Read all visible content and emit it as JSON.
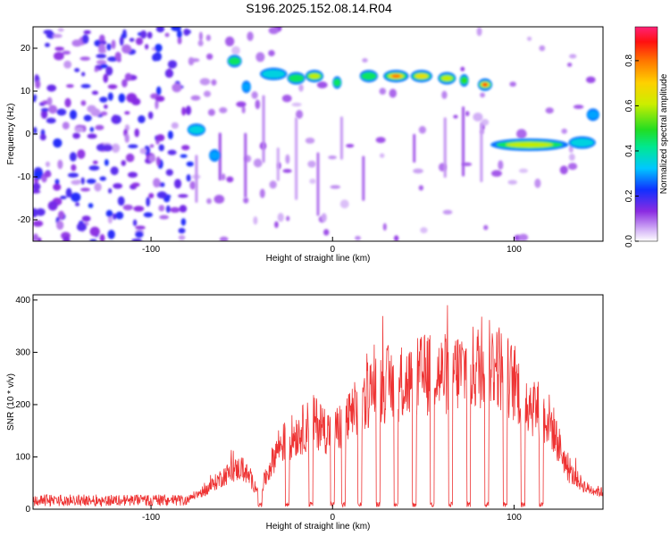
{
  "title": "S196.2025.152.08.14.R04",
  "chart_data": [
    {
      "type": "heatmap",
      "xlabel": "Height of straight line (km)",
      "ylabel": "Frequency (Hz)",
      "xlim": [
        -165,
        149
      ],
      "ylim": [
        -25,
        25
      ],
      "x_ticks": [
        -100,
        0,
        100
      ],
      "x_tick_labels": [
        "-100",
        "0",
        "100"
      ],
      "y_ticks": [
        -20,
        -10,
        0,
        10,
        20
      ],
      "y_tick_labels": [
        "-20",
        "-10",
        "0",
        "10",
        "20"
      ],
      "colorbar": {
        "label": "Normalized spectral amplitude",
        "range": [
          0,
          0.95
        ],
        "ticks": [
          0,
          0.2,
          0.4,
          0.6,
          0.8
        ],
        "tick_labels": [
          "0.0",
          "0.2",
          "0.4",
          "0.6",
          "0.8"
        ]
      },
      "ridges": [
        {
          "x_start": -80,
          "x_end": -70,
          "freq": 1,
          "amp": 0.35
        },
        {
          "x_start": -68,
          "x_end": -62,
          "freq": -5,
          "amp": 0.3
        },
        {
          "x_start": -58,
          "x_end": -50,
          "freq": 17,
          "amp": 0.45
        },
        {
          "x_start": -50,
          "x_end": -45,
          "freq": 11,
          "amp": 0.3
        },
        {
          "x_start": -40,
          "x_end": -25,
          "freq": 14,
          "amp": 0.35
        },
        {
          "x_start": -25,
          "x_end": -15,
          "freq": 13,
          "amp": 0.45
        },
        {
          "x_start": -15,
          "x_end": -5,
          "freq": 13.5,
          "amp": 0.6
        },
        {
          "x_start": 0,
          "x_end": 5,
          "freq": 12,
          "amp": 0.45
        },
        {
          "x_start": 15,
          "x_end": 25,
          "freq": 13.5,
          "amp": 0.45
        },
        {
          "x_start": 28,
          "x_end": 42,
          "freq": 13.5,
          "amp": 0.8
        },
        {
          "x_start": 43,
          "x_end": 55,
          "freq": 13.5,
          "amp": 0.7
        },
        {
          "x_start": 58,
          "x_end": 68,
          "freq": 13,
          "amp": 0.6
        },
        {
          "x_start": 70,
          "x_end": 75,
          "freq": 12.5,
          "amp": 0.5
        },
        {
          "x_start": 80,
          "x_end": 88,
          "freq": 11.5,
          "amp": 0.85
        },
        {
          "x_start": 87,
          "x_end": 130,
          "freq": -2.5,
          "amp": 0.6
        },
        {
          "x_start": 130,
          "x_end": 145,
          "freq": -2,
          "amp": 0.35
        },
        {
          "x_start": 140,
          "x_end": 147,
          "freq": 4.5,
          "amp": 0.3
        }
      ]
    },
    {
      "type": "line",
      "xlabel": "Height of straight line (km)",
      "ylabel": "SNR (10 * v/v)",
      "xlim": [
        -165,
        149
      ],
      "ylim": [
        0,
        410
      ],
      "x_ticks": [
        -100,
        0,
        100
      ],
      "x_tick_labels": [
        "-100",
        "0",
        "100"
      ],
      "y_ticks": [
        0,
        100,
        200,
        300,
        400
      ],
      "y_tick_labels": [
        "0",
        "100",
        "200",
        "300",
        "400"
      ],
      "series_color": "#ee3333",
      "envelope": {
        "x": [
          -165,
          -80,
          -70,
          -60,
          -50,
          -40,
          -30,
          -20,
          -10,
          0,
          10,
          20,
          30,
          40,
          50,
          60,
          70,
          80,
          90,
          100,
          110,
          120,
          130,
          140,
          149
        ],
        "y": [
          18,
          25,
          45,
          80,
          100,
          40,
          150,
          180,
          210,
          180,
          220,
          280,
          300,
          300,
          320,
          320,
          330,
          340,
          350,
          300,
          250,
          210,
          90,
          50,
          40
        ]
      },
      "dropouts_x": [
        -40,
        -25,
        -12,
        0,
        6,
        15,
        25,
        35,
        45,
        55,
        65,
        75,
        85,
        95,
        105,
        115
      ]
    }
  ]
}
